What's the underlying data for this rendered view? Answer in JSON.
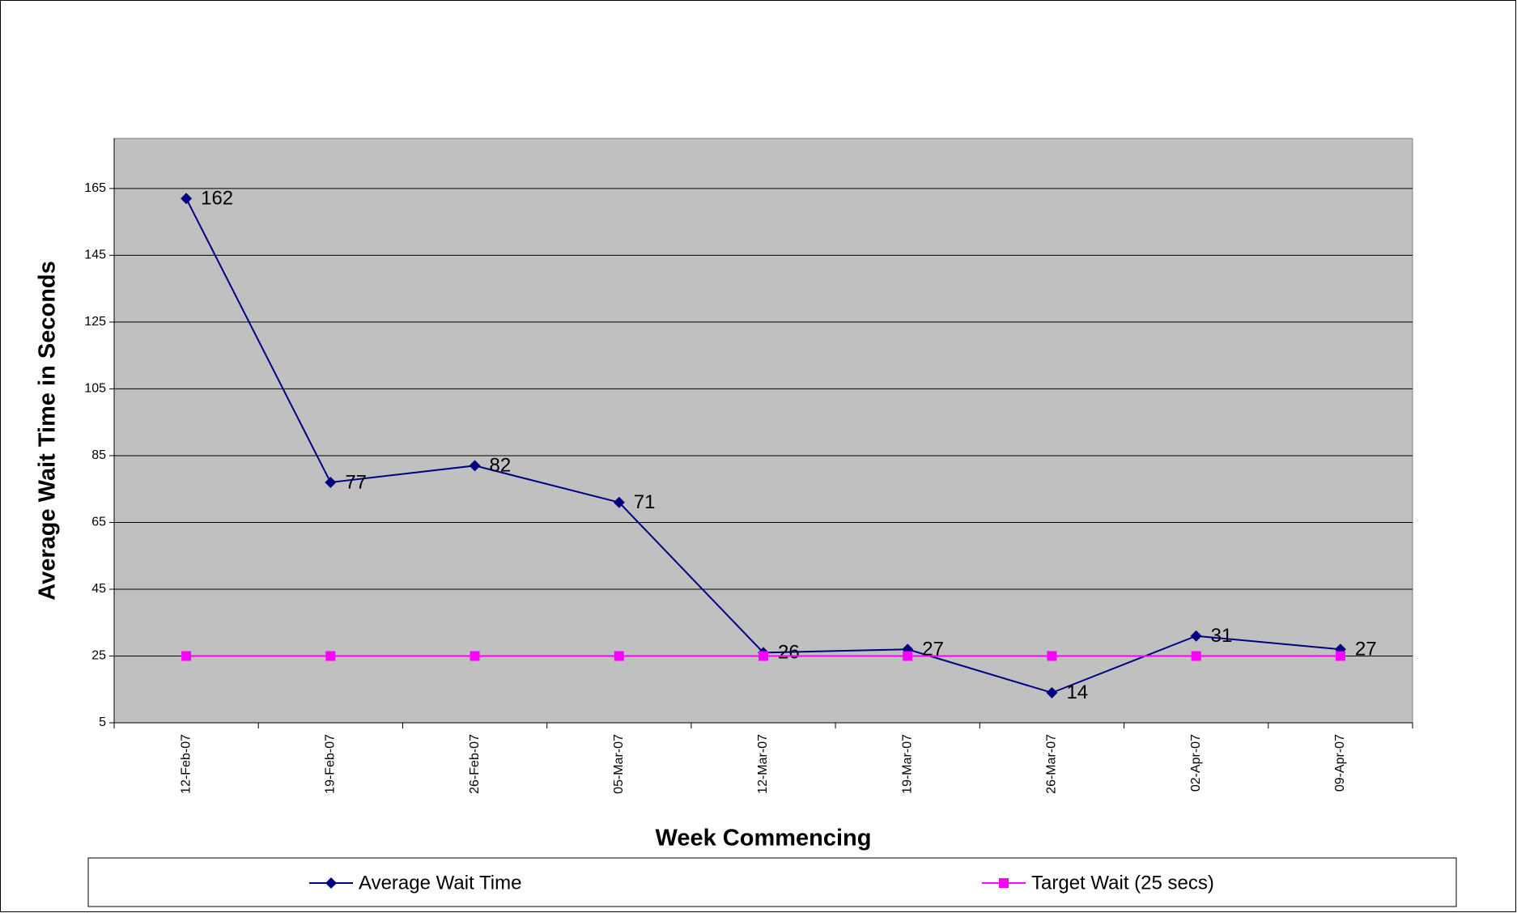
{
  "chart_data": {
    "type": "line",
    "categories": [
      "12-Feb-07",
      "19-Feb-07",
      "26-Feb-07",
      "05-Mar-07",
      "12-Mar-07",
      "19-Mar-07",
      "26-Mar-07",
      "02-Apr-07",
      "09-Apr-07"
    ],
    "series": [
      {
        "name": "Average Wait Time",
        "color": "#000080",
        "marker": "diamond",
        "data_labels": true,
        "values": [
          162,
          77,
          82,
          71,
          26,
          27,
          14,
          31,
          27
        ]
      },
      {
        "name": "Target Wait (25 secs)",
        "color": "#ff00ff",
        "marker": "square",
        "data_labels": false,
        "values": [
          25,
          25,
          25,
          25,
          25,
          25,
          25,
          25,
          25
        ]
      }
    ],
    "x_label": "Week Commencing",
    "y_label": "Average Wait Time in Seconds",
    "ylim": [
      5,
      180
    ],
    "yticks": [
      5,
      25,
      45,
      65,
      85,
      105,
      125,
      145,
      165
    ],
    "grid": true,
    "plot_background": "#c0c0c0",
    "legend": "bottom"
  }
}
